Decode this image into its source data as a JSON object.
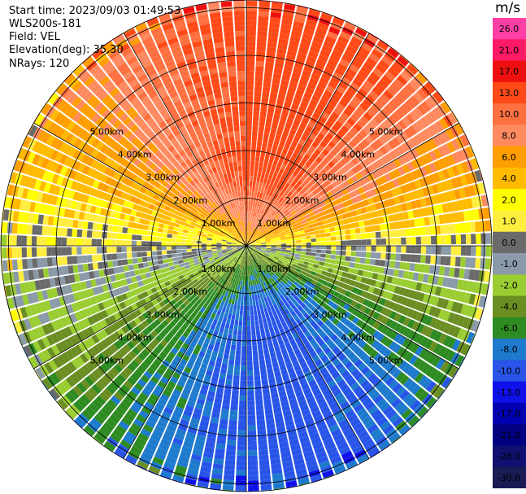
{
  "header": {
    "start_time": "Start time: 2023/09/03 01:49:53",
    "station": "WLS200s-181",
    "field": "Field: VEL",
    "elevation": "Elevation(deg): 35.30",
    "nrays": "NRays: 120"
  },
  "colorbar": {
    "unit": "m/s",
    "levels": [
      "26.0",
      "21.0",
      "17.0",
      "13.0",
      "10.0",
      "8.0",
      "6.0",
      "4.0",
      "2.0",
      "1.0",
      "0.0",
      "-1.0",
      "-2.0",
      "-4.0",
      "-6.0",
      "-8.0",
      "-10.0",
      "-13.0",
      "-17.0",
      "-21.0",
      "-26.0",
      "-30.0"
    ],
    "colors": [
      "#ff3fa6",
      "#ff1a66",
      "#ee1010",
      "#ff4a18",
      "#ff7040",
      "#ff8a60",
      "#ff9e00",
      "#ffbb00",
      "#ffff00",
      "#ffee40",
      "#6a6a6a",
      "#8a9aa8",
      "#9acd32",
      "#6b8e23",
      "#2e8b22",
      "#1e7acd",
      "#2855e8",
      "#1010e8",
      "#0000b0",
      "#000080",
      "#101070",
      "#1a1a55"
    ]
  },
  "chart_data": {
    "type": "heatmap",
    "projection": "polar PPI",
    "field": "VEL",
    "units": "m/s",
    "range_rings_km": [
      1.0,
      2.0,
      3.0,
      4.0,
      5.0
    ],
    "ring_labels": [
      "1.00km",
      "2.00km",
      "3.00km",
      "4.00km",
      "5.00km"
    ],
    "azimuth_lines_deg": [
      0,
      30,
      60,
      90,
      120,
      150,
      180,
      210,
      240,
      270,
      300,
      330
    ],
    "nrays": 120,
    "max_range_km": 6.3,
    "pattern": "positive velocities (orange/red) toward north, negative velocities (green/blue) toward south, near-zero band east-west, noisy outer gates"
  }
}
